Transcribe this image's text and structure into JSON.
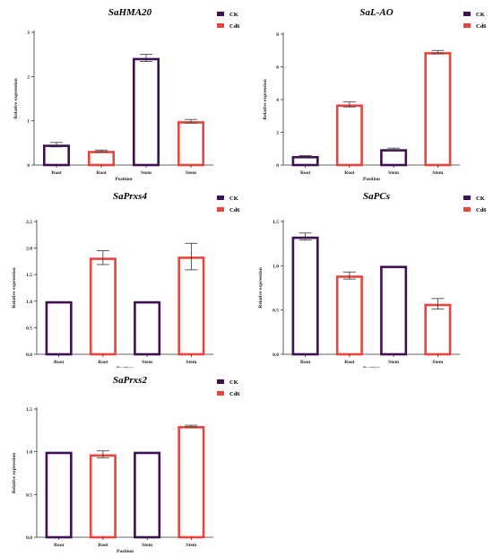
{
  "colors": {
    "ck": "#3f1152",
    "cd6": "#e8453f",
    "axis": "#333333"
  },
  "chart_data": [
    {
      "type": "bar",
      "title": "SaHMA20",
      "categories": [
        "Root",
        "Root",
        "Stem",
        "Stem"
      ],
      "bar_groups": [
        "CK",
        "Cd6",
        "CK",
        "Cd6"
      ],
      "values": [
        0.46,
        0.32,
        2.42,
        0.99
      ],
      "errors": [
        0.05,
        0.02,
        0.08,
        0.04
      ],
      "yticks": [
        "0",
        "1",
        "2",
        "3"
      ],
      "ylim": [
        0,
        3
      ],
      "xlabel": "Position",
      "ylabel": "Relative expression",
      "legend": [
        "CK",
        "Cd6"
      ],
      "legend_position": "top-right"
    },
    {
      "type": "bar",
      "title": "SaL-AO",
      "categories": [
        "Root",
        "Root",
        "Stem",
        "Stem"
      ],
      "bar_groups": [
        "CK",
        "Cd6",
        "CK",
        "Cd6"
      ],
      "values": [
        0.55,
        3.7,
        0.97,
        6.9
      ],
      "errors": [
        0.03,
        0.15,
        0.06,
        0.1
      ],
      "yticks": [
        "0",
        "2",
        "4",
        "6",
        "8"
      ],
      "ylim": [
        0,
        8
      ],
      "xlabel": "Position",
      "ylabel": "Relative expression",
      "legend": [
        "CK",
        "Cd6"
      ],
      "legend_position": "top-right"
    },
    {
      "type": "bar",
      "title": "SaPrxs4",
      "categories": [
        "Root",
        "Root",
        "Stem",
        "Stem"
      ],
      "bar_groups": [
        "CK",
        "Cd6",
        "CK",
        "Cd6"
      ],
      "values": [
        1.0,
        1.82,
        1.0,
        1.84
      ],
      "errors": [
        0.0,
        0.13,
        0.0,
        0.25
      ],
      "yticks": [
        "0.0",
        "0.5",
        "1.0",
        "1.5",
        "2.0",
        "2.5"
      ],
      "ylim": [
        0,
        2.5
      ],
      "xlabel": "Position",
      "ylabel": "Relative expression",
      "legend": [
        "CK",
        "Cd6"
      ],
      "legend_position": "top-right"
    },
    {
      "type": "bar",
      "title": "SaPCs",
      "categories": [
        "Root",
        "Root",
        "Stem",
        "Stem"
      ],
      "bar_groups": [
        "CK",
        "Cd6",
        "CK",
        "Cd6"
      ],
      "values": [
        1.33,
        0.89,
        1.0,
        0.57
      ],
      "errors": [
        0.04,
        0.04,
        0.0,
        0.06
      ],
      "yticks": [
        "0.0",
        "0.5",
        "1.0",
        "1.5"
      ],
      "ylim": [
        0,
        1.5
      ],
      "xlabel": "Position",
      "ylabel": "Relative expression",
      "legend": [
        "CK",
        "Cd6"
      ],
      "legend_position": "top-right"
    },
    {
      "type": "bar",
      "title": "SaPrxs2",
      "categories": [
        "Root",
        "Root",
        "Stem",
        "Stem"
      ],
      "bar_groups": [
        "CK",
        "Cd6",
        "CK",
        "Cd6"
      ],
      "values": [
        1.0,
        0.97,
        1.0,
        1.3
      ],
      "errors": [
        0.0,
        0.04,
        0.0,
        0.01
      ],
      "yticks": [
        "0.0",
        "0.5",
        "1.0",
        "1.5"
      ],
      "ylim": [
        0,
        1.5
      ],
      "xlabel": "Position",
      "ylabel": "Relative expression",
      "legend": [
        "CK",
        "Cd6"
      ],
      "legend_position": "top-right"
    }
  ]
}
